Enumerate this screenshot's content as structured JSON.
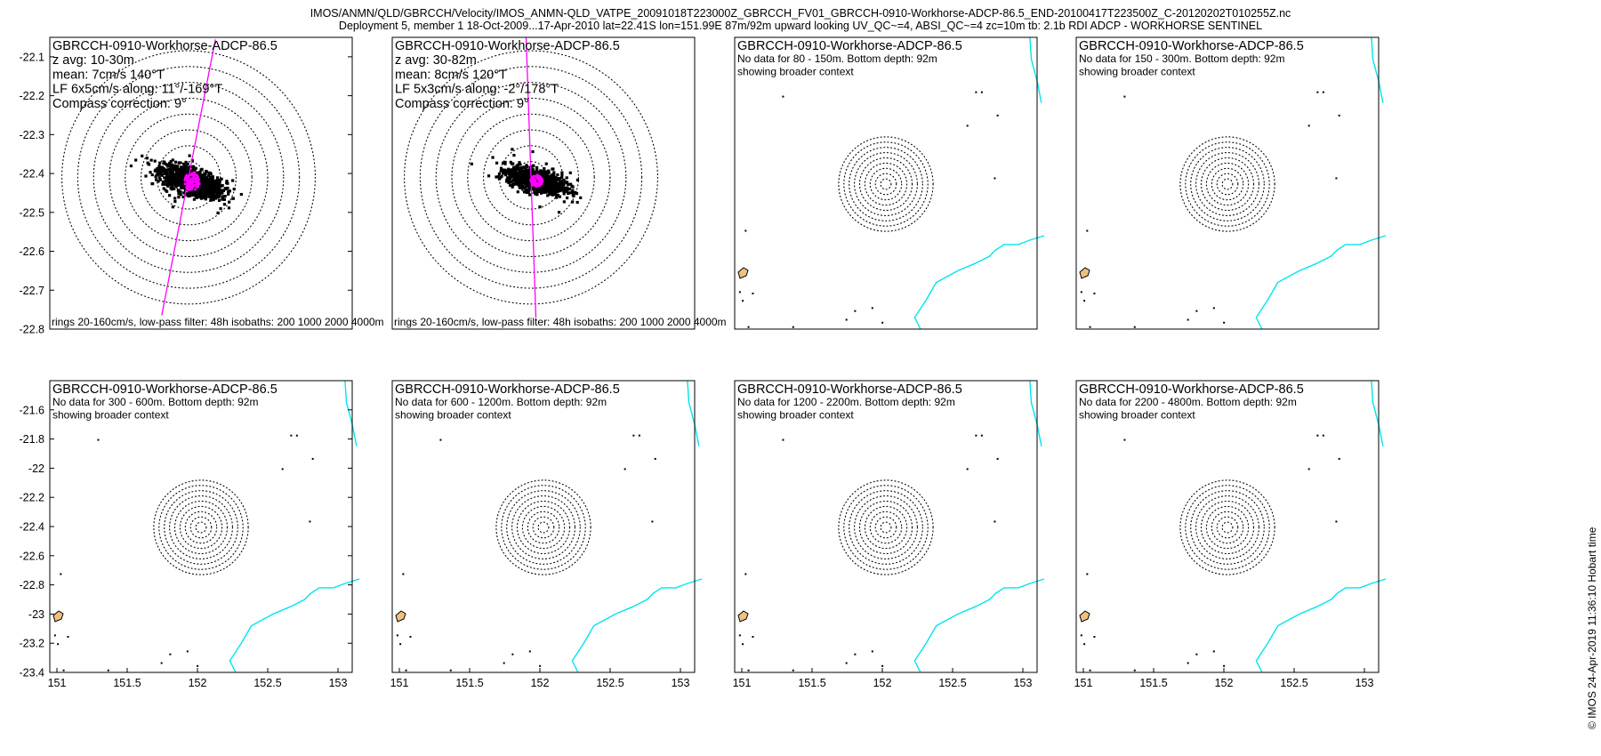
{
  "header": {
    "line1": "IMOS/ANMN/QLD/GBRCCH/Velocity/IMOS_ANMN-QLD_VATPE_20091018T223000Z_GBRCCH_FV01_GBRCCH-0910-Workhorse-ADCP-86.5_END-20100417T223500Z_C-20120202T010255Z.nc",
    "line2": "Deployment 5, member 1 18-Oct-2009...17-Apr-2010 lat=22.41S lon=151.99E 87m/92m upward looking UV_QC~=4, ABSI_QC~=4 zc=10m tb: 2.1b RDI ADCP - WORKHORSE SENTINEL"
  },
  "credit": "© IMOS 24-Apr-2019 11:36:10 Hobart time",
  "colors": {
    "scatter": "#000000",
    "principal_axis": "#ff00ff",
    "mean_cluster": "#ff00ff",
    "coast": "#00e5ee",
    "rings": "#000000"
  },
  "chart_data": [
    {
      "type": "scatter",
      "panel": "top-1",
      "title_lines": [
        "GBRCCH-0910-Workhorse-ADCP-86.5",
        "z avg: 10-30m",
        "mean: 7cm/s 140°T",
        "LF 6x5cm/s along: 11°/-169°T",
        "Compass correction: 9°"
      ],
      "footer": "rings 20-160cm/s, low-pass filter: 48h isobaths: 200 1000 2000 4000m",
      "ylim": [
        -22.8,
        -22.05
      ],
      "yticks": [
        -22.1,
        -22.2,
        -22.3,
        -22.4,
        -22.5,
        -22.6,
        -22.7,
        -22.8
      ],
      "center": [
        152.0,
        -22.41
      ],
      "ring_speeds_cms": [
        20,
        40,
        60,
        80,
        100,
        120,
        140,
        160
      ],
      "mean_speed_cms": 7,
      "mean_dir_degT": 140,
      "ellipse_major_cms": 6,
      "ellipse_minor_cms": 5,
      "along_axis_degT": 11,
      "scatter_major_cms": 45,
      "scatter_minor_cms": 14,
      "scatter_orientation_degT": 110
    },
    {
      "type": "scatter",
      "panel": "top-2",
      "title_lines": [
        "GBRCCH-0910-Workhorse-ADCP-86.5",
        "z avg: 30-82m",
        "mean: 8cm/s 120°T",
        "LF 5x3cm/s along: -2°/178°T",
        "Compass correction: 9°"
      ],
      "footer": "rings 20-160cm/s, low-pass filter: 48h isobaths: 200 1000 2000 4000m",
      "center": [
        152.0,
        -22.41
      ],
      "ring_speeds_cms": [
        20,
        40,
        60,
        80,
        100,
        120,
        140,
        160
      ],
      "mean_speed_cms": 8,
      "mean_dir_degT": 120,
      "ellipse_major_cms": 5,
      "ellipse_minor_cms": 3,
      "along_axis_degT": -2,
      "scatter_major_cms": 40,
      "scatter_minor_cms": 12,
      "scatter_orientation_degT": 105
    },
    {
      "type": "map",
      "panel": "top-3",
      "title_lines": [
        "GBRCCH-0910-Workhorse-ADCP-86.5",
        "No data for 80 - 150m. Bottom depth: 92m",
        "showing broader context"
      ]
    },
    {
      "type": "map",
      "panel": "top-4",
      "title_lines": [
        "GBRCCH-0910-Workhorse-ADCP-86.5",
        "No data for 150 - 300m. Bottom depth: 92m",
        "showing broader context"
      ]
    },
    {
      "type": "map",
      "panel": "bottom-1",
      "title_lines": [
        "GBRCCH-0910-Workhorse-ADCP-86.5",
        "No data for 300 - 600m. Bottom depth: 92m",
        "showing broader context"
      ],
      "xlim": [
        150.95,
        153.05
      ],
      "ylim": [
        -23.4,
        -21.4
      ],
      "xticks": [
        "151",
        "151.5",
        "152",
        "152.5",
        "153"
      ],
      "yticks": [
        "-21.6",
        "-21.8",
        "-22",
        "-22.2",
        "-22.4",
        "-22.6",
        "-22.8",
        "-23",
        "-23.2",
        "-23.4"
      ]
    },
    {
      "type": "map",
      "panel": "bottom-2",
      "title_lines": [
        "GBRCCH-0910-Workhorse-ADCP-86.5",
        "No data for 600 - 1200m. Bottom depth: 92m",
        "showing broader context"
      ],
      "xticks": [
        "151",
        "151.5",
        "152",
        "152.5",
        "153"
      ]
    },
    {
      "type": "map",
      "panel": "bottom-3",
      "title_lines": [
        "GBRCCH-0910-Workhorse-ADCP-86.5",
        "No data for 1200 - 2200m. Bottom depth: 92m",
        "showing broader context"
      ],
      "xticks": [
        "151",
        "151.5",
        "152",
        "152.5",
        "153"
      ]
    },
    {
      "type": "map",
      "panel": "bottom-4",
      "title_lines": [
        "GBRCCH-0910-Workhorse-ADCP-86.5",
        "No data for 2200 - 4800m. Bottom depth: 92m",
        "showing broader context"
      ],
      "xticks": [
        "151",
        "151.5",
        "152",
        "152.5",
        "153"
      ]
    }
  ]
}
